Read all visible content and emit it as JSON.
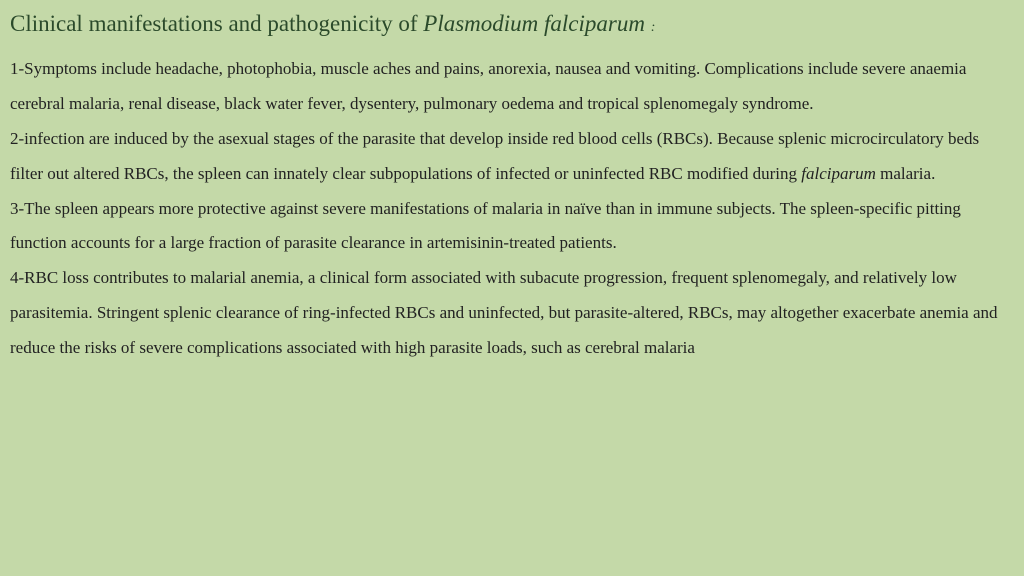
{
  "colors": {
    "background": "#c4d9a8",
    "title_color": "#2b4a2b",
    "body_color": "#222222"
  },
  "typography": {
    "font_family": "Times New Roman",
    "title_fontsize_pt": 17,
    "body_fontsize_pt": 13,
    "body_line_height": 2.05
  },
  "title": {
    "prefix": "Clinical manifestations  and pathogenicity of ",
    "italic": "Plasmodium falciparum ",
    "suffix": ":"
  },
  "paragraphs": {
    "p1": "1-Symptoms include headache, photophobia, muscle aches and pains,  anorexia, nausea and vomiting. Complications include severe anaemia  cerebral malaria, renal disease, black water fever, dysentery, pulmonary  oedema and tropical splenomegaly syndrome.",
    "p2_a": " 2-infection are induced by the asexual stages of the parasite that develop inside red blood cells (RBCs). Because splenic microcirculatory beds filter out altered RBCs, the spleen can innately clear subpopulations of infected or uninfected RBC modified during ",
    "p2_italic": "falciparum",
    "p2_b": " malaria.",
    "p3": "3-The spleen appears more protective against severe manifestations of malaria in naïve than in immune subjects. The spleen-specific pitting function accounts for a large fraction of parasite clearance in artemisinin-treated patients.",
    "p4": "4-RBC loss contributes to malarial anemia, a clinical form associated with subacute progression, frequent splenomegaly, and relatively low parasitemia. Stringent splenic clearance of ring-infected RBCs and uninfected, but parasite-altered, RBCs, may altogether exacerbate anemia and reduce the risks of severe complications associated with high parasite loads, such as cerebral malaria"
  }
}
